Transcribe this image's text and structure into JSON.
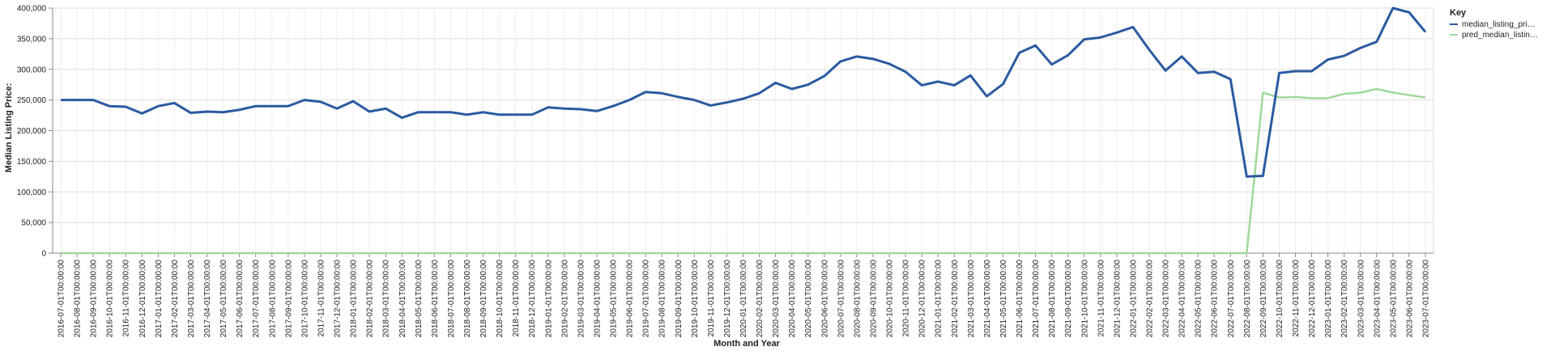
{
  "chart_data": {
    "type": "line",
    "xlabel": "Month and Year",
    "ylabel": "Median Listing Price:",
    "ylim": [
      0,
      400000
    ],
    "yticks": [
      "0",
      "50,000",
      "100,000",
      "150,000",
      "200,000",
      "250,000",
      "300,000",
      "350,000",
      "400,000"
    ],
    "grid": true,
    "legend": {
      "title": "Key",
      "position": "right"
    },
    "x": [
      "2016-07-01T00:00:00",
      "2016-08-01T00:00:00",
      "2016-09-01T00:00:00",
      "2016-10-01T00:00:00",
      "2016-11-01T00:00:00",
      "2016-12-01T00:00:00",
      "2017-01-01T00:00:00",
      "2017-02-01T00:00:00",
      "2017-03-01T00:00:00",
      "2017-04-01T00:00:00",
      "2017-05-01T00:00:00",
      "2017-06-01T00:00:00",
      "2017-07-01T00:00:00",
      "2017-08-01T00:00:00",
      "2017-09-01T00:00:00",
      "2017-10-01T00:00:00",
      "2017-11-01T00:00:00",
      "2017-12-01T00:00:00",
      "2018-01-01T00:00:00",
      "2018-02-01T00:00:00",
      "2018-03-01T00:00:00",
      "2018-04-01T00:00:00",
      "2018-05-01T00:00:00",
      "2018-06-01T00:00:00",
      "2018-07-01T00:00:00",
      "2018-08-01T00:00:00",
      "2018-09-01T00:00:00",
      "2018-10-01T00:00:00",
      "2018-11-01T00:00:00",
      "2018-12-01T00:00:00",
      "2019-01-01T00:00:00",
      "2019-02-01T00:00:00",
      "2019-03-01T00:00:00",
      "2019-04-01T00:00:00",
      "2019-05-01T00:00:00",
      "2019-06-01T00:00:00",
      "2019-07-01T00:00:00",
      "2019-08-01T00:00:00",
      "2019-09-01T00:00:00",
      "2019-10-01T00:00:00",
      "2019-11-01T00:00:00",
      "2019-12-01T00:00:00",
      "2020-01-01T00:00:00",
      "2020-02-01T00:00:00",
      "2020-03-01T00:00:00",
      "2020-04-01T00:00:00",
      "2020-05-01T00:00:00",
      "2020-06-01T00:00:00",
      "2020-07-01T00:00:00",
      "2020-08-01T00:00:00",
      "2020-09-01T00:00:00",
      "2020-10-01T00:00:00",
      "2020-11-01T00:00:00",
      "2020-12-01T00:00:00",
      "2021-01-01T00:00:00",
      "2021-02-01T00:00:00",
      "2021-03-01T00:00:00",
      "2021-04-01T00:00:00",
      "2021-05-01T00:00:00",
      "2021-06-01T00:00:00",
      "2021-07-01T00:00:00",
      "2021-08-01T00:00:00",
      "2021-09-01T00:00:00",
      "2021-10-01T00:00:00",
      "2021-11-01T00:00:00",
      "2021-12-01T00:00:00",
      "2022-01-01T00:00:00",
      "2022-02-01T00:00:00",
      "2022-03-01T00:00:00",
      "2022-04-01T00:00:00",
      "2022-05-01T00:00:00",
      "2022-06-01T00:00:00",
      "2022-07-01T00:00:00",
      "2022-08-01T00:00:00",
      "2022-09-01T00:00:00",
      "2022-10-01T00:00:00",
      "2022-11-01T00:00:00",
      "2022-12-01T00:00:00",
      "2023-01-01T00:00:00",
      "2023-02-01T00:00:00",
      "2023-03-01T00:00:00",
      "2023-04-01T00:00:00",
      "2023-05-01T00:00:00",
      "2023-06-01T00:00:00",
      "2023-07-01T00:00:00"
    ],
    "series": [
      {
        "name": "median_listing_pri…",
        "color": "#2b5aa0",
        "values": [
          250000,
          250000,
          250000,
          240000,
          239000,
          228000,
          240000,
          245000,
          229000,
          231000,
          230000,
          234000,
          240000,
          240000,
          240000,
          250000,
          247000,
          236000,
          248000,
          231000,
          236000,
          221000,
          230000,
          230000,
          230000,
          226000,
          230000,
          226000,
          226000,
          226000,
          238000,
          236000,
          235000,
          232000,
          240000,
          250000,
          263000,
          261000,
          255000,
          250000,
          241000,
          246000,
          252000,
          261000,
          278000,
          268000,
          275000,
          289000,
          313000,
          321000,
          317000,
          309000,
          296000,
          274000,
          280000,
          274000,
          290000,
          256000,
          276000,
          327000,
          339000,
          308000,
          323000,
          349000,
          352000,
          360000,
          369000,
          332000,
          298000,
          321000,
          294000,
          296000,
          284000,
          125000,
          126000,
          294000,
          297000,
          297000,
          316000,
          322000,
          335000,
          345000,
          400000,
          393000,
          361000
        ]
      },
      {
        "name": "pred_median_listin…",
        "color": "#9fd99a",
        "values": [
          0,
          0,
          0,
          0,
          0,
          0,
          0,
          0,
          0,
          0,
          0,
          0,
          0,
          0,
          0,
          0,
          0,
          0,
          0,
          0,
          0,
          0,
          0,
          0,
          0,
          0,
          0,
          0,
          0,
          0,
          0,
          0,
          0,
          0,
          0,
          0,
          0,
          0,
          0,
          0,
          0,
          0,
          0,
          0,
          0,
          0,
          0,
          0,
          0,
          0,
          0,
          0,
          0,
          0,
          0,
          0,
          0,
          0,
          0,
          0,
          0,
          0,
          0,
          0,
          0,
          0,
          0,
          0,
          0,
          0,
          0,
          0,
          0,
          0,
          262000,
          254000,
          255000,
          253000,
          253000,
          260000,
          262000,
          268000,
          262000,
          258000,
          254000
        ]
      }
    ]
  }
}
